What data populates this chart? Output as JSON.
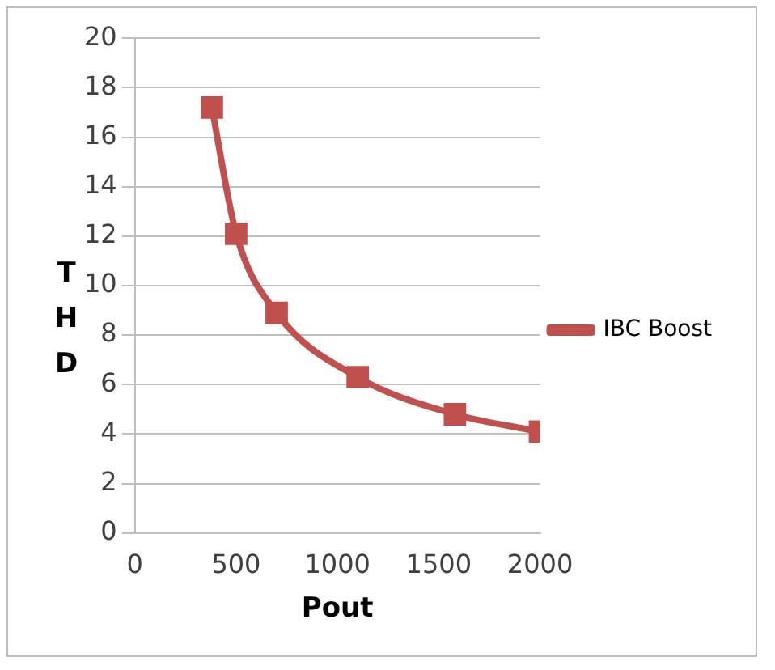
{
  "chart_data": {
    "type": "line",
    "xlabel": "Pout",
    "ylabel": "THD",
    "x": [
      380,
      500,
      700,
      1100,
      1580,
      2000
    ],
    "series": [
      {
        "name": "IBC Boost",
        "color": "#c0504d",
        "values": [
          17.2,
          12.1,
          8.9,
          6.3,
          4.8,
          4.1
        ]
      }
    ],
    "xlim": [
      0,
      2000
    ],
    "xticks": [
      0,
      500,
      1000,
      1500,
      2000
    ],
    "ylim": [
      0,
      20
    ],
    "yticks": [
      0,
      2,
      4,
      6,
      8,
      10,
      12,
      14,
      16,
      18,
      20
    ],
    "grid": "y",
    "legend": "right",
    "marker": "square",
    "line_style": "solid"
  }
}
